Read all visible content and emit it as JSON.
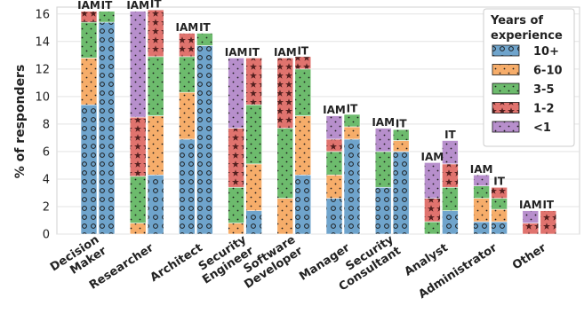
{
  "chart_data": {
    "type": "bar",
    "stacked": true,
    "grouped": true,
    "groups": [
      "IAM",
      "IT"
    ],
    "categories": [
      [
        "Decision",
        "Maker"
      ],
      [
        "Researcher"
      ],
      [
        "Architect"
      ],
      [
        "Security",
        "Engineer"
      ],
      [
        "Software",
        "Developer"
      ],
      [
        "Manager"
      ],
      [
        "Security",
        "Consultant"
      ],
      [
        "Analyst"
      ],
      [
        "Administrator"
      ],
      [
        "Other"
      ]
    ],
    "ylabel": "% of responders",
    "ylim": [
      0,
      16.5
    ],
    "yticks": [
      0,
      2,
      4,
      6,
      8,
      10,
      12,
      14,
      16
    ],
    "grid": true,
    "legend": {
      "title": [
        "Years of",
        "experience"
      ],
      "position": "top-right"
    },
    "series": [
      {
        "name": "10+",
        "color": "#6fa4cc",
        "pattern": "circles",
        "iam": [
          9.4,
          0.0,
          6.9,
          0.0,
          0.0,
          2.6,
          3.4,
          0.0,
          0.9,
          0.0
        ],
        "it": [
          15.4,
          4.3,
          13.7,
          1.7,
          4.3,
          6.9,
          6.0,
          1.7,
          0.9,
          0.0
        ]
      },
      {
        "name": "6-10",
        "color": "#f6ad6a",
        "pattern": "dots",
        "iam": [
          3.4,
          0.8,
          3.4,
          0.8,
          2.6,
          1.7,
          0.0,
          0.0,
          1.7,
          0.0
        ],
        "it": [
          0.0,
          4.3,
          0.0,
          3.4,
          4.3,
          0.9,
          0.8,
          0.0,
          0.9,
          0.0
        ]
      },
      {
        "name": "3-5",
        "color": "#6dbb6d",
        "pattern": "dots",
        "iam": [
          2.6,
          3.4,
          2.6,
          2.6,
          5.1,
          1.7,
          2.6,
          0.9,
          0.9,
          0.0
        ],
        "it": [
          0.8,
          4.3,
          0.9,
          4.3,
          3.4,
          0.9,
          0.8,
          1.7,
          0.8,
          0.0
        ]
      },
      {
        "name": "1-2",
        "color": "#e0736e",
        "pattern": "stars",
        "iam": [
          0.8,
          4.3,
          1.7,
          4.3,
          5.1,
          0.9,
          0.0,
          1.7,
          0.0,
          0.8
        ],
        "it": [
          0.0,
          3.4,
          0.0,
          3.4,
          0.9,
          0.0,
          0.0,
          1.7,
          0.8,
          1.7
        ]
      },
      {
        "name": "<1",
        "color": "#b78fcc",
        "pattern": "dots",
        "iam": [
          0.0,
          7.7,
          0.0,
          5.1,
          0.0,
          1.7,
          1.7,
          2.6,
          0.8,
          0.9
        ],
        "it": [
          0.0,
          0.0,
          0.0,
          0.0,
          0.0,
          0.0,
          0.0,
          1.7,
          0.0,
          0.0
        ]
      }
    ]
  }
}
